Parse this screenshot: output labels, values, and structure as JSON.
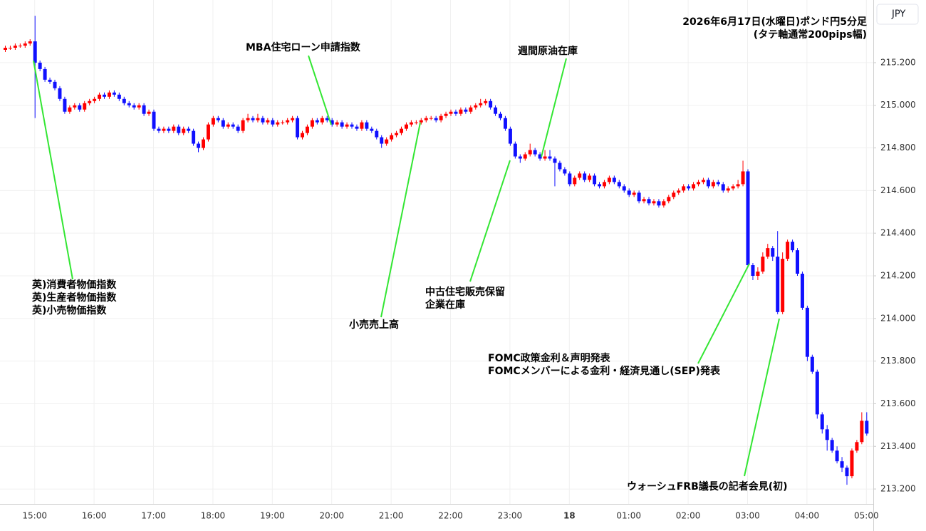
{
  "chart_data": {
    "type": "candlestick",
    "title": [
      "2026年6月17日(水曜日)ポンド円5分足",
      "(タテ軸通常200pips幅)"
    ],
    "currency": "JPY",
    "up_color": "#ff0000",
    "down_color": "#1010ff",
    "annotation_color": "#33e633",
    "grid": true,
    "categories": [
      null,
      null,
      null,
      null,
      null,
      null,
      "15:00",
      null,
      null,
      null,
      null,
      null,
      null,
      null,
      null,
      null,
      null,
      null,
      "16:00",
      null,
      null,
      null,
      null,
      null,
      null,
      null,
      null,
      null,
      null,
      null,
      "17:00",
      null,
      null,
      null,
      null,
      null,
      null,
      null,
      null,
      null,
      null,
      null,
      "18:00",
      null,
      null,
      null,
      null,
      null,
      null,
      null,
      null,
      null,
      null,
      null,
      "19:00",
      null,
      null,
      null,
      null,
      null,
      null,
      null,
      null,
      null,
      null,
      null,
      "20:00",
      null,
      null,
      null,
      null,
      null,
      null,
      null,
      null,
      null,
      null,
      null,
      "21:00",
      null,
      null,
      null,
      null,
      null,
      null,
      null,
      null,
      null,
      null,
      null,
      "22:00",
      null,
      null,
      null,
      null,
      null,
      null,
      null,
      null,
      null,
      null,
      null,
      "23:00",
      null,
      null,
      null,
      null,
      null,
      null,
      null,
      null,
      null,
      null,
      null,
      "18",
      null,
      null,
      null,
      null,
      null,
      null,
      null,
      null,
      null,
      null,
      null,
      "01:00",
      null,
      null,
      null,
      null,
      null,
      null,
      null,
      null,
      null,
      null,
      null,
      "02:00",
      null,
      null,
      null,
      null,
      null,
      null,
      null,
      null,
      null,
      null,
      null,
      "03:00",
      null,
      null,
      null,
      null,
      null,
      null,
      null,
      null,
      null,
      null,
      null,
      "04:00",
      null,
      null,
      null,
      null,
      null,
      null,
      null,
      null,
      null,
      null,
      null,
      "05:00"
    ],
    "open": [
      215.26,
      215.27,
      215.27,
      215.28,
      215.28,
      215.29,
      215.3,
      215.2,
      215.17,
      215.12,
      215.11,
      215.08,
      215.03,
      214.97,
      214.99,
      215.0,
      214.98,
      215.01,
      215.02,
      215.03,
      215.05,
      215.04,
      215.06,
      215.05,
      215.03,
      215.01,
      215.0,
      214.99,
      215.0,
      214.96,
      214.97,
      214.89,
      214.88,
      214.89,
      214.88,
      214.9,
      214.87,
      214.89,
      214.88,
      214.82,
      214.8,
      214.84,
      214.91,
      214.94,
      214.93,
      214.9,
      214.91,
      214.9,
      214.88,
      214.93,
      214.94,
      214.93,
      214.94,
      214.92,
      214.93,
      214.91,
      214.92,
      214.92,
      214.93,
      214.94,
      214.85,
      214.87,
      214.9,
      214.93,
      214.92,
      214.94,
      214.93,
      214.91,
      214.92,
      214.9,
      214.91,
      214.9,
      214.89,
      214.92,
      214.89,
      214.88,
      214.85,
      214.82,
      214.84,
      214.86,
      214.87,
      214.89,
      214.91,
      214.92,
      214.92,
      214.93,
      214.94,
      214.94,
      214.93,
      214.95,
      214.96,
      214.97,
      214.96,
      214.98,
      214.97,
      214.99,
      215.0,
      215.01,
      215.02,
      214.99,
      214.96,
      214.94,
      214.89,
      214.82,
      214.76,
      214.75,
      214.77,
      214.79,
      214.77,
      214.75,
      214.76,
      214.75,
      214.73,
      214.7,
      214.68,
      214.63,
      214.66,
      214.68,
      214.65,
      214.67,
      214.63,
      214.62,
      214.64,
      214.66,
      214.64,
      214.62,
      214.6,
      214.58,
      214.59,
      214.55,
      214.56,
      214.54,
      214.55,
      214.53,
      214.55,
      214.57,
      214.59,
      214.6,
      214.62,
      214.61,
      214.63,
      214.64,
      214.65,
      214.62,
      214.64,
      214.63,
      214.6,
      214.61,
      214.62,
      214.63,
      214.69,
      214.25,
      214.2,
      214.22,
      214.29,
      214.33,
      214.29,
      214.03,
      214.28,
      214.36,
      214.32,
      214.21,
      214.05,
      213.82,
      213.75,
      213.55,
      213.48,
      213.43,
      213.38,
      213.33,
      213.3,
      213.26,
      213.38,
      213.42,
      213.52
    ],
    "high": [
      215.28,
      215.28,
      215.29,
      215.29,
      215.3,
      215.31,
      215.42,
      215.21,
      215.18,
      215.13,
      215.12,
      215.09,
      215.04,
      215.0,
      215.01,
      215.01,
      215.02,
      215.03,
      215.04,
      215.06,
      215.06,
      215.07,
      215.07,
      215.06,
      215.04,
      215.02,
      215.01,
      215.01,
      215.01,
      214.98,
      214.98,
      214.9,
      214.9,
      214.9,
      214.91,
      214.91,
      214.9,
      214.9,
      214.89,
      214.83,
      214.85,
      214.92,
      214.95,
      214.95,
      214.94,
      214.92,
      214.92,
      214.91,
      214.94,
      214.96,
      214.95,
      214.96,
      214.95,
      214.94,
      214.94,
      214.93,
      214.93,
      214.94,
      214.95,
      214.95,
      214.88,
      214.91,
      214.94,
      214.94,
      214.95,
      214.95,
      214.94,
      214.93,
      214.93,
      214.92,
      214.92,
      214.91,
      214.93,
      214.93,
      214.9,
      214.89,
      214.86,
      214.85,
      214.87,
      214.88,
      214.9,
      214.92,
      214.93,
      214.93,
      214.94,
      214.95,
      214.95,
      214.95,
      214.96,
      214.97,
      214.98,
      214.98,
      214.99,
      214.99,
      215.0,
      215.01,
      215.03,
      215.03,
      215.03,
      215.0,
      214.97,
      214.95,
      214.9,
      214.83,
      214.77,
      214.78,
      214.82,
      214.8,
      214.78,
      214.79,
      214.79,
      214.76,
      214.74,
      214.71,
      214.69,
      214.67,
      214.69,
      214.69,
      214.68,
      214.68,
      214.64,
      214.65,
      214.67,
      214.67,
      214.65,
      214.63,
      214.61,
      214.6,
      214.6,
      214.57,
      214.57,
      214.56,
      214.56,
      214.56,
      214.58,
      214.6,
      214.61,
      214.63,
      214.63,
      214.64,
      214.65,
      214.66,
      214.66,
      214.65,
      214.65,
      214.64,
      214.62,
      214.63,
      214.65,
      214.74,
      214.7,
      214.26,
      214.24,
      214.31,
      214.35,
      214.34,
      214.41,
      214.31,
      214.37,
      214.37,
      214.33,
      214.22,
      214.06,
      213.83,
      213.76,
      213.56,
      213.5,
      213.44,
      213.4,
      213.35,
      213.31,
      213.39,
      213.43,
      213.56,
      213.56
    ],
    "low": [
      215.25,
      215.26,
      215.26,
      215.27,
      215.27,
      215.28,
      214.94,
      215.16,
      215.11,
      215.1,
      215.07,
      215.02,
      214.96,
      214.96,
      214.98,
      214.97,
      214.97,
      215.0,
      215.01,
      215.02,
      215.03,
      215.03,
      215.04,
      215.02,
      215.0,
      214.99,
      214.98,
      214.98,
      214.95,
      214.95,
      214.88,
      214.87,
      214.87,
      214.87,
      214.87,
      214.86,
      214.86,
      214.87,
      214.81,
      214.78,
      214.79,
      214.83,
      214.9,
      214.92,
      214.89,
      214.89,
      214.89,
      214.87,
      214.87,
      214.92,
      214.92,
      214.92,
      214.91,
      214.91,
      214.9,
      214.9,
      214.91,
      214.91,
      214.92,
      214.84,
      214.84,
      214.86,
      214.89,
      214.91,
      214.91,
      214.92,
      214.9,
      214.9,
      214.89,
      214.89,
      214.89,
      214.88,
      214.88,
      214.88,
      214.87,
      214.84,
      214.8,
      214.81,
      214.83,
      214.85,
      214.86,
      214.88,
      214.9,
      214.91,
      214.91,
      214.92,
      214.93,
      214.92,
      214.92,
      214.94,
      214.95,
      214.95,
      214.95,
      214.96,
      214.96,
      214.98,
      214.99,
      215.0,
      214.98,
      214.95,
      214.93,
      214.88,
      214.81,
      214.75,
      214.73,
      214.74,
      214.76,
      214.76,
      214.74,
      214.74,
      214.74,
      214.62,
      214.69,
      214.67,
      214.62,
      214.62,
      214.65,
      214.64,
      214.64,
      214.62,
      214.61,
      214.61,
      214.63,
      214.63,
      214.61,
      214.59,
      214.57,
      214.57,
      214.54,
      214.54,
      214.53,
      214.53,
      214.52,
      214.52,
      214.54,
      214.56,
      214.58,
      214.59,
      214.6,
      214.6,
      214.62,
      214.63,
      214.61,
      214.61,
      214.62,
      214.59,
      214.59,
      214.6,
      214.61,
      214.62,
      214.24,
      214.18,
      214.18,
      214.21,
      214.28,
      214.27,
      214.02,
      214.02,
      214.27,
      214.31,
      214.2,
      214.04,
      213.8,
      213.74,
      213.53,
      213.46,
      213.38,
      213.37,
      213.32,
      213.28,
      213.22,
      213.25,
      213.37,
      213.41,
      213.45
    ],
    "close": [
      215.27,
      215.27,
      215.28,
      215.28,
      215.29,
      215.3,
      215.2,
      215.17,
      215.12,
      215.11,
      215.08,
      215.03,
      214.97,
      214.99,
      215.0,
      214.98,
      215.01,
      215.02,
      215.03,
      215.05,
      215.04,
      215.06,
      215.05,
      215.03,
      215.01,
      215.0,
      214.99,
      215.0,
      214.96,
      214.97,
      214.89,
      214.88,
      214.89,
      214.88,
      214.9,
      214.87,
      214.89,
      214.88,
      214.82,
      214.8,
      214.84,
      214.91,
      214.94,
      214.93,
      214.9,
      214.91,
      214.9,
      214.88,
      214.93,
      214.94,
      214.93,
      214.94,
      214.92,
      214.93,
      214.91,
      214.92,
      214.92,
      214.93,
      214.94,
      214.85,
      214.87,
      214.9,
      214.93,
      214.92,
      214.94,
      214.93,
      214.91,
      214.92,
      214.9,
      214.91,
      214.9,
      214.89,
      214.92,
      214.89,
      214.88,
      214.85,
      214.82,
      214.84,
      214.86,
      214.87,
      214.89,
      214.91,
      214.92,
      214.92,
      214.93,
      214.94,
      214.94,
      214.93,
      214.95,
      214.96,
      214.97,
      214.96,
      214.98,
      214.97,
      214.99,
      215.0,
      215.01,
      215.02,
      214.99,
      214.96,
      214.94,
      214.89,
      214.82,
      214.76,
      214.75,
      214.77,
      214.79,
      214.77,
      214.75,
      214.76,
      214.75,
      214.73,
      214.7,
      214.68,
      214.63,
      214.66,
      214.68,
      214.65,
      214.67,
      214.63,
      214.62,
      214.64,
      214.66,
      214.64,
      214.62,
      214.6,
      214.58,
      214.59,
      214.55,
      214.56,
      214.54,
      214.55,
      214.53,
      214.55,
      214.57,
      214.59,
      214.6,
      214.62,
      214.61,
      214.63,
      214.64,
      214.65,
      214.62,
      214.64,
      214.63,
      214.6,
      214.61,
      214.62,
      214.63,
      214.69,
      214.25,
      214.2,
      214.22,
      214.29,
      214.33,
      214.29,
      214.03,
      214.28,
      214.36,
      214.32,
      214.21,
      214.05,
      213.82,
      213.75,
      213.55,
      213.48,
      213.43,
      213.38,
      213.33,
      213.3,
      213.26,
      213.38,
      213.42,
      213.52,
      213.46
    ],
    "ylim": [
      213.13,
      215.494
    ],
    "yticks": [
      {
        "value": 215.2,
        "label": "215.200"
      },
      {
        "value": 215.0,
        "label": "215.000"
      },
      {
        "value": 214.8,
        "label": "214.800"
      },
      {
        "value": 214.6,
        "label": "214.600"
      },
      {
        "value": 214.4,
        "label": "214.400"
      },
      {
        "value": 214.2,
        "label": "214.200"
      },
      {
        "value": 214.0,
        "label": "214.000"
      },
      {
        "value": 213.8,
        "label": "213.800"
      },
      {
        "value": 213.6,
        "label": "213.600"
      },
      {
        "value": 213.4,
        "label": "213.400"
      },
      {
        "value": 213.2,
        "label": "213.200"
      }
    ],
    "annotations": [
      {
        "lines": [
          "英)消費者物価指数",
          "英)生産者物価指数",
          "英)小売物価指数"
        ]
      },
      {
        "lines": [
          "MBA住宅ローン申請指数"
        ]
      },
      {
        "lines": [
          "小売売上高"
        ]
      },
      {
        "lines": [
          "週間原油在庫"
        ]
      },
      {
        "lines": [
          "中古住宅販売保留",
          "企業在庫"
        ]
      },
      {
        "lines": [
          "FOMC政策金利＆声明発表",
          "FOMCメンバーによる金利・経済見通し(SEP)発表"
        ]
      },
      {
        "lines": [
          "ウォーシュFRB議長の記者会見(初)"
        ]
      }
    ]
  }
}
